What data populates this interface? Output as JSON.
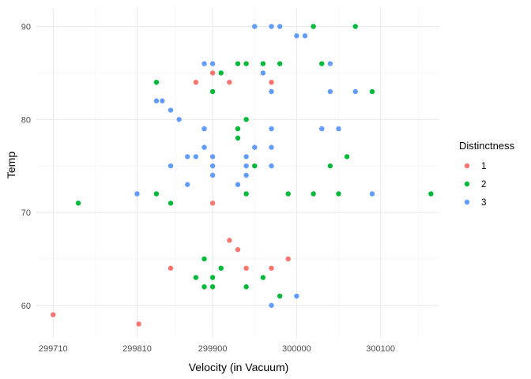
{
  "chart_data": {
    "type": "scatter",
    "title": "",
    "xlabel": "Velocity (in Vacuum)",
    "ylabel": "Temp",
    "xlim": [
      299690,
      300170
    ],
    "ylim": [
      56.5,
      92
    ],
    "x_ticks": [
      299710,
      299810,
      299900,
      300000,
      300100
    ],
    "x_tick_labels": [
      "299710",
      "299810",
      "299900",
      "300000",
      "300100"
    ],
    "y_ticks": [
      60,
      70,
      80,
      90
    ],
    "y_tick_labels": [
      "60",
      "70",
      "80",
      "90"
    ],
    "grid": true,
    "legend": {
      "title": "Distinctness",
      "position": "right",
      "entries": [
        "1",
        "2",
        "3"
      ]
    },
    "colors": {
      "1": "#F8766D",
      "2": "#00BA38",
      "3": "#619CFF"
    },
    "series": [
      {
        "name": "1",
        "color": "#F8766D",
        "points": [
          [
            299710,
            59
          ],
          [
            299812,
            58
          ],
          [
            299880,
            84
          ],
          [
            299900,
            85
          ],
          [
            299920,
            84
          ],
          [
            299970,
            84
          ],
          [
            299900,
            71
          ],
          [
            299920,
            67
          ],
          [
            299930,
            66
          ],
          [
            299990,
            65
          ],
          [
            299850,
            64
          ],
          [
            299940,
            64
          ],
          [
            299970,
            64
          ]
        ]
      },
      {
        "name": "2",
        "color": "#00BA38",
        "points": [
          [
            299740,
            71
          ],
          [
            299833,
            84
          ],
          [
            299833,
            72
          ],
          [
            299850,
            71
          ],
          [
            299880,
            63
          ],
          [
            299890,
            65
          ],
          [
            299890,
            62
          ],
          [
            299900,
            63
          ],
          [
            299900,
            62
          ],
          [
            299910,
            64
          ],
          [
            299900,
            83
          ],
          [
            299910,
            85
          ],
          [
            299930,
            86
          ],
          [
            299940,
            86
          ],
          [
            299960,
            86
          ],
          [
            299980,
            86
          ],
          [
            299930,
            79
          ],
          [
            299930,
            78
          ],
          [
            299940,
            80
          ],
          [
            299950,
            75
          ],
          [
            299940,
            72
          ],
          [
            299940,
            62
          ],
          [
            299960,
            63
          ],
          [
            299980,
            61
          ],
          [
            299990,
            72
          ],
          [
            300020,
            90
          ],
          [
            300030,
            86
          ],
          [
            300040,
            75
          ],
          [
            300060,
            76
          ],
          [
            300020,
            72
          ],
          [
            300050,
            72
          ],
          [
            300070,
            90
          ],
          [
            300090,
            83
          ],
          [
            300160,
            72
          ]
        ]
      },
      {
        "name": "3",
        "color": "#619CFF",
        "points": [
          [
            299810,
            72
          ],
          [
            299833,
            82
          ],
          [
            299840,
            82
          ],
          [
            299850,
            81
          ],
          [
            299860,
            80
          ],
          [
            299850,
            75
          ],
          [
            299870,
            76
          ],
          [
            299880,
            76
          ],
          [
            299870,
            73
          ],
          [
            299890,
            86
          ],
          [
            299900,
            86
          ],
          [
            299890,
            79
          ],
          [
            299890,
            77
          ],
          [
            299900,
            76
          ],
          [
            299900,
            75
          ],
          [
            299900,
            74
          ],
          [
            299930,
            73
          ],
          [
            299940,
            76
          ],
          [
            299940,
            75
          ],
          [
            299940,
            74
          ],
          [
            299950,
            77
          ],
          [
            299950,
            90
          ],
          [
            299970,
            90
          ],
          [
            299980,
            90
          ],
          [
            299960,
            85
          ],
          [
            299970,
            83
          ],
          [
            299970,
            79
          ],
          [
            299970,
            77
          ],
          [
            299970,
            75
          ],
          [
            299970,
            60
          ],
          [
            300000,
            61
          ],
          [
            300000,
            89
          ],
          [
            300010,
            89
          ],
          [
            300030,
            79
          ],
          [
            300050,
            79
          ],
          [
            300040,
            86
          ],
          [
            300040,
            83
          ],
          [
            300070,
            83
          ],
          [
            300090,
            72
          ]
        ]
      }
    ]
  }
}
